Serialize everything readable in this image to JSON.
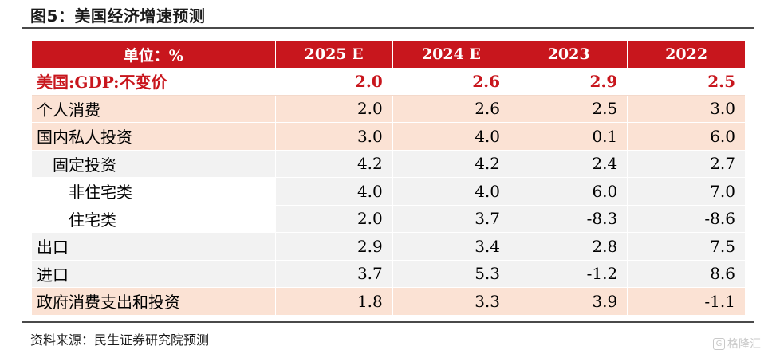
{
  "title": "图5：美国经济增速预测",
  "source": "资料来源：民生证券研究院预测",
  "watermark": "格隆汇",
  "watermark_icon": "G",
  "table": {
    "header": [
      "单位：%",
      "2025 E",
      "2024 E",
      "2023",
      "2022"
    ],
    "rows": [
      {
        "label": "美国:GDP:不变价",
        "values": [
          "2.0",
          "2.6",
          "2.9",
          "2.5"
        ]
      },
      {
        "label": "个人消费",
        "values": [
          "2.0",
          "2.6",
          "2.5",
          "3.0"
        ]
      },
      {
        "label": "国内私人投资",
        "values": [
          "3.0",
          "4.0",
          "0.1",
          "6.0"
        ]
      },
      {
        "label": "固定投资",
        "values": [
          "4.2",
          "4.2",
          "2.4",
          "2.7"
        ]
      },
      {
        "label": "非住宅类",
        "values": [
          "4.0",
          "4.0",
          "6.0",
          "7.0"
        ]
      },
      {
        "label": "住宅类",
        "values": [
          "2.0",
          "3.7",
          "-8.3",
          "-8.6"
        ]
      },
      {
        "label": "出口",
        "values": [
          "2.9",
          "3.4",
          "2.8",
          "7.5"
        ]
      },
      {
        "label": "进口",
        "values": [
          "3.7",
          "5.3",
          "-1.2",
          "8.6"
        ]
      },
      {
        "label": "政府消费支出和投资",
        "values": [
          "1.8",
          "3.3",
          "3.9",
          "-1.1"
        ]
      }
    ]
  },
  "colors": {
    "header_bg": "#c8161d",
    "header_text": "#ffffff",
    "highlight_text": "#c8161d",
    "row_pink": "#fbe2d4",
    "row_grey": "#f2f2f2",
    "rule": "#4a4a4a"
  }
}
